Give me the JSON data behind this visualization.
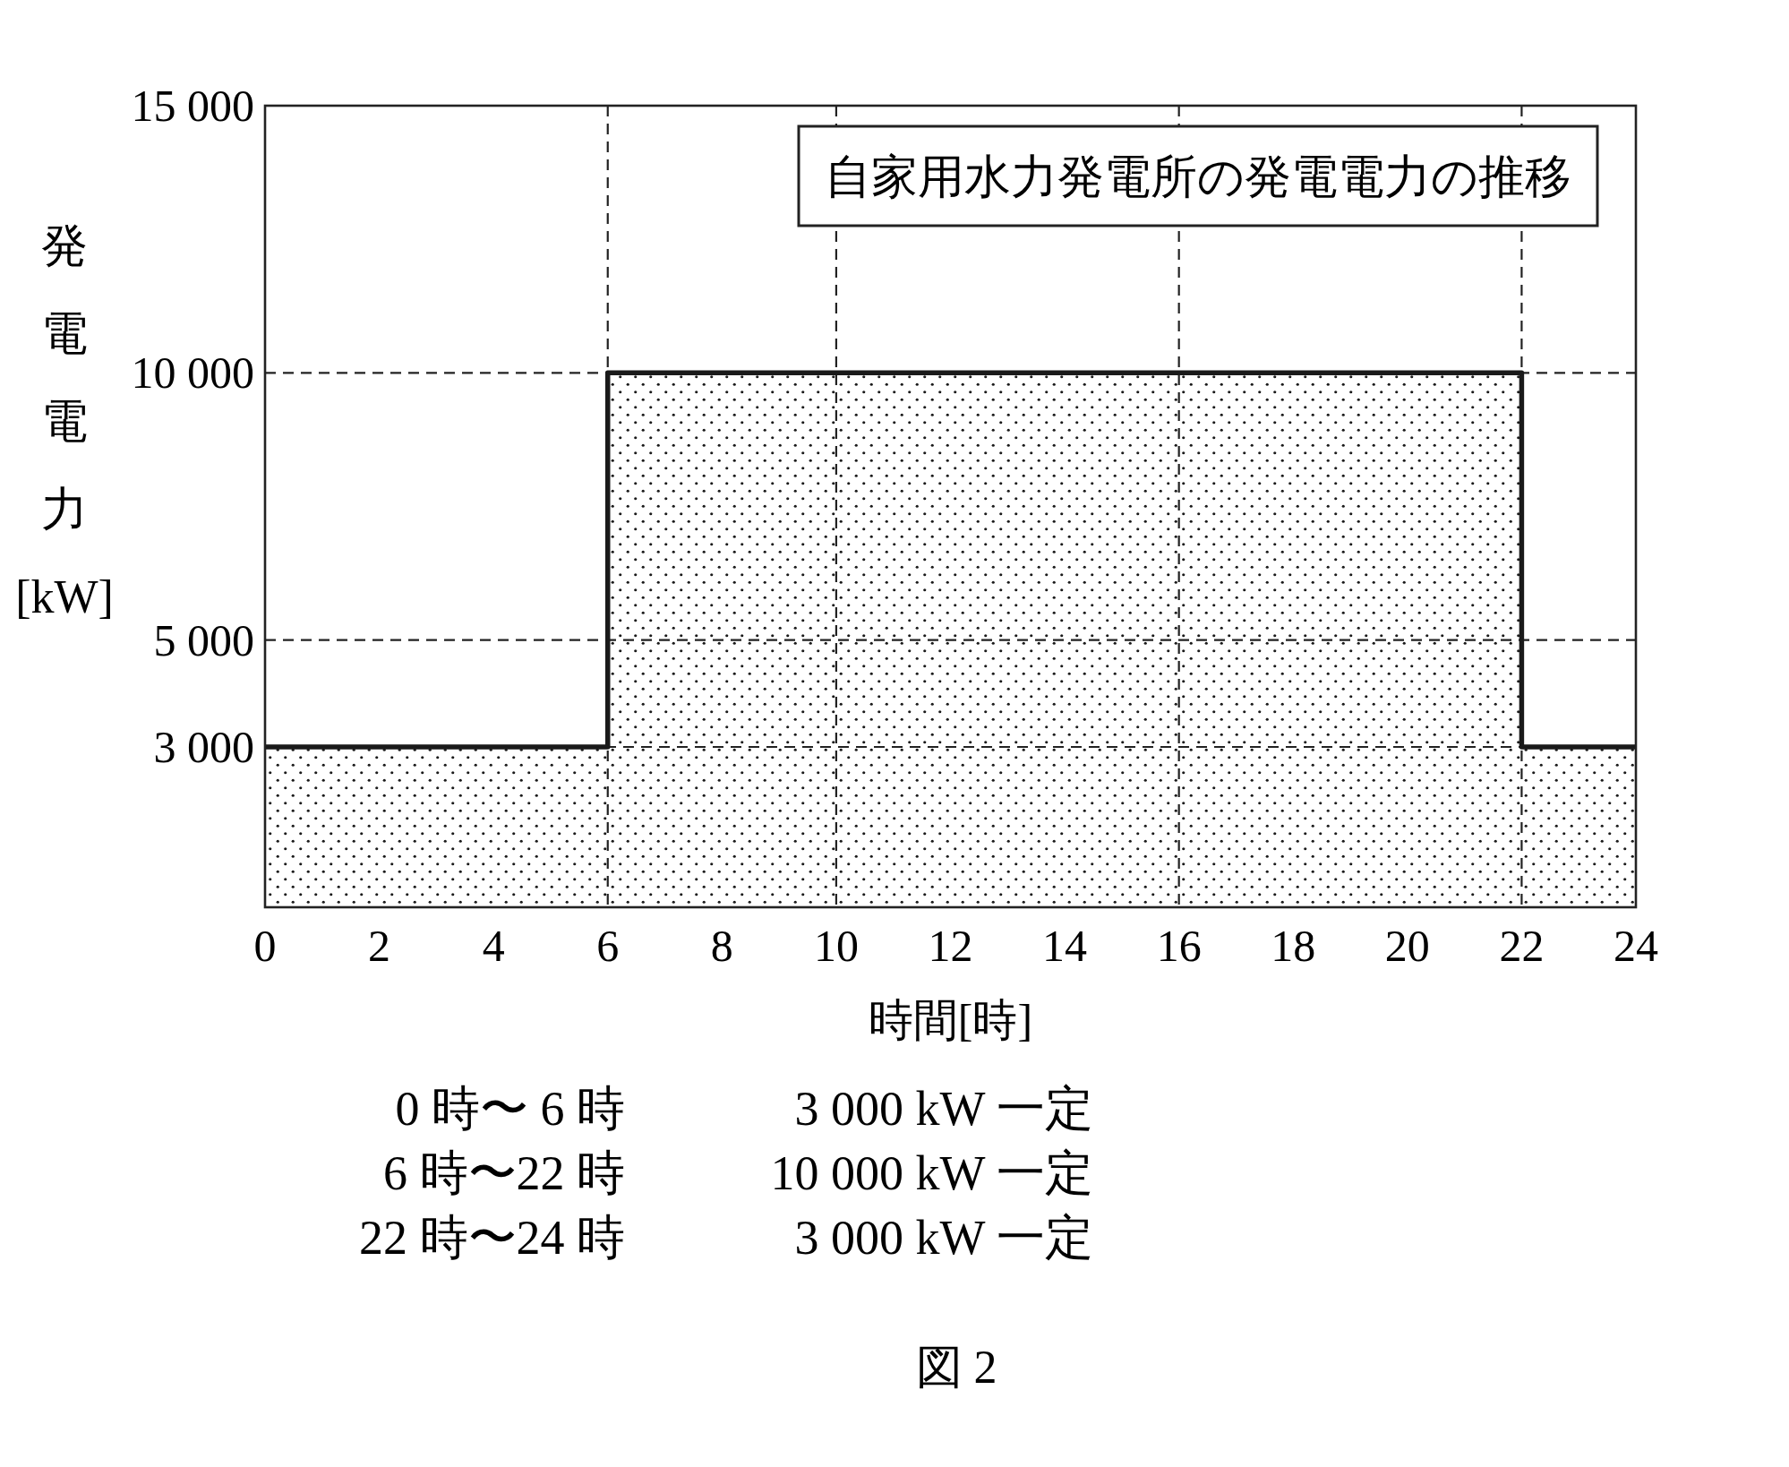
{
  "chart_data": {
    "type": "area",
    "title": "自家用水力発電所の発電電力の推移",
    "xlabel": "時間[時]",
    "ylabel": "発電電力[kW]",
    "x": [
      0,
      6,
      6,
      22,
      22,
      24
    ],
    "values": [
      3000,
      3000,
      10000,
      10000,
      3000,
      3000
    ],
    "color": "#1a1a1a",
    "xlim": [
      0,
      24
    ],
    "ylim": [
      0,
      15000
    ],
    "xticks": [
      0,
      2,
      4,
      6,
      8,
      10,
      12,
      14,
      16,
      18,
      20,
      22,
      24
    ],
    "yticks": [
      {
        "value": 3000,
        "label": "3 000"
      },
      {
        "value": 5000,
        "label": "5 000"
      },
      {
        "value": 10000,
        "label": "10 000"
      },
      {
        "value": 15000,
        "label": "15 000"
      }
    ],
    "ref_lines": [
      {
        "axis": "x",
        "value": 6,
        "line_style": "dashed"
      },
      {
        "axis": "x",
        "value": 10,
        "line_style": "dashed"
      },
      {
        "axis": "x",
        "value": 16,
        "line_style": "dashed"
      },
      {
        "axis": "x",
        "value": 22,
        "line_style": "dashed"
      },
      {
        "axis": "y",
        "value": 3000,
        "line_style": "dashed"
      },
      {
        "axis": "y",
        "value": 5000,
        "line_style": "dashed"
      },
      {
        "axis": "y",
        "value": 10000,
        "line_style": "dashed"
      }
    ],
    "annotations": [
      "0 時〜 6 時",
      "3 000 kW 一定",
      "6 時〜22 時",
      "10 000 kW 一定",
      "22 時〜24 時",
      "3 000 kW 一定",
      "図 2"
    ]
  }
}
